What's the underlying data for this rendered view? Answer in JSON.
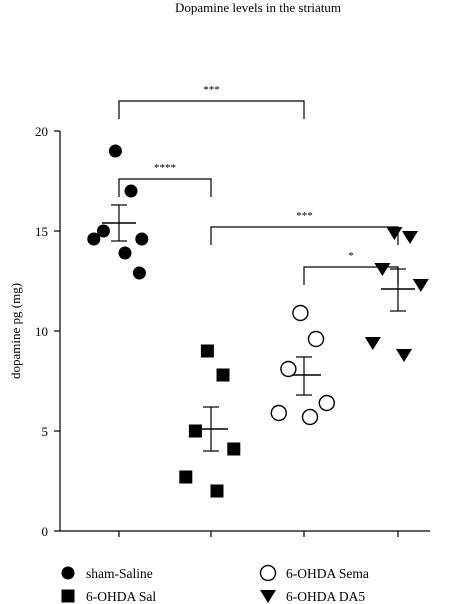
{
  "chart_data": {
    "type": "scatter",
    "title": "Dopamine levels in the striatum",
    "ylabel": "dopamine pg (mg)",
    "xlabel": "",
    "ylim": [
      0,
      20
    ],
    "yticks": [
      0,
      5,
      10,
      15,
      20
    ],
    "grid": false,
    "legend_position": "bottom",
    "groups": [
      {
        "name": "sham-Saline",
        "marker": "circle-filled",
        "values": [
          19.0,
          17.0,
          15.0,
          14.6,
          14.6,
          13.9,
          12.9
        ],
        "mean": 15.4,
        "sem_low": 14.5,
        "sem_high": 16.3
      },
      {
        "name": "6-OHDA Sal",
        "marker": "square-filled",
        "values": [
          9.0,
          7.8,
          5.0,
          4.1,
          2.7,
          2.0
        ],
        "mean": 5.1,
        "sem_low": 4.0,
        "sem_high": 6.2
      },
      {
        "name": "6-OHDA Sema",
        "marker": "circle-open",
        "values": [
          10.9,
          9.6,
          8.1,
          6.4,
          5.9,
          5.7
        ],
        "mean": 7.8,
        "sem_low": 6.8,
        "sem_high": 8.7
      },
      {
        "name": "6-OHDA DA5",
        "marker": "triangle-down-filled",
        "values": [
          14.9,
          14.7,
          13.1,
          12.3,
          9.4,
          8.8
        ],
        "mean": 12.1,
        "sem_low": 11.0,
        "sem_high": 13.1
      }
    ],
    "annotations": [
      {
        "from": 0,
        "to": 2,
        "y": 21.5,
        "text": "***"
      },
      {
        "from": 0,
        "to": 1,
        "y": 17.6,
        "text": "****"
      },
      {
        "from": 1,
        "to": 3,
        "y": 15.2,
        "text": "***"
      },
      {
        "from": 2,
        "to": 3,
        "y": 13.2,
        "text": "*"
      }
    ]
  }
}
